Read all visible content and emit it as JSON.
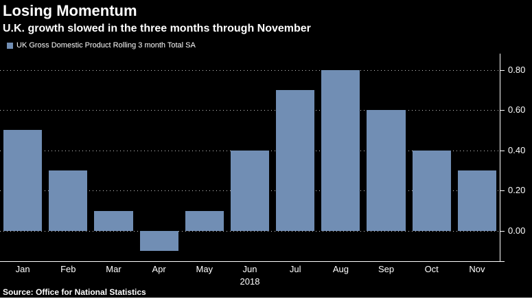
{
  "colors": {
    "background": "#000000",
    "bar": "#718EB4",
    "text": "#FFFFFF",
    "axis": "#FFFFFF"
  },
  "header": {
    "title": "Losing Momentum",
    "subtitle": "U.K. growth slowed in the three months through November"
  },
  "legend": {
    "label": "UK Gross Domestic Product Rolling 3 month Total SA"
  },
  "chart_data": {
    "type": "bar",
    "title": "Losing Momentum",
    "subtitle": "U.K. growth slowed in the three months through November",
    "series_name": "UK Gross Domestic Product Rolling 3 month Total SA",
    "categories": [
      "Jan",
      "Feb",
      "Mar",
      "Apr",
      "May",
      "Jun",
      "Jul",
      "Aug",
      "Sep",
      "Oct",
      "Nov"
    ],
    "values": [
      0.5,
      0.3,
      0.1,
      -0.1,
      0.1,
      0.4,
      0.7,
      0.8,
      0.6,
      0.4,
      0.3
    ],
    "xlabel": "2018",
    "ylabel": "",
    "ylim": [
      -0.15,
      0.88
    ],
    "yticks": [
      0.0,
      0.2,
      0.4,
      0.6,
      0.8
    ],
    "ytick_labels": [
      "0.00",
      "0.20",
      "0.40",
      "0.60",
      "0.80"
    ],
    "grid": true,
    "legend_position": "top-left",
    "bar_color": "#718EB4",
    "axis_side": "right"
  },
  "footer": {
    "source": "Source: Office for National Statistics"
  }
}
